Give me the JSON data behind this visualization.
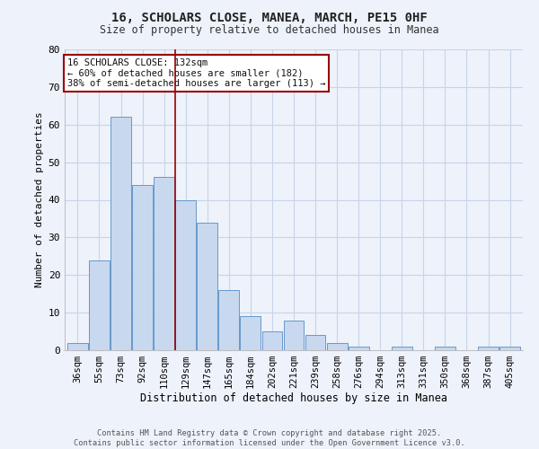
{
  "title_line1": "16, SCHOLARS CLOSE, MANEA, MARCH, PE15 0HF",
  "title_line2": "Size of property relative to detached houses in Manea",
  "xlabel": "Distribution of detached houses by size in Manea",
  "ylabel": "Number of detached properties",
  "bar_labels": [
    "36sqm",
    "55sqm",
    "73sqm",
    "92sqm",
    "110sqm",
    "129sqm",
    "147sqm",
    "165sqm",
    "184sqm",
    "202sqm",
    "221sqm",
    "239sqm",
    "258sqm",
    "276sqm",
    "294sqm",
    "313sqm",
    "331sqm",
    "350sqm",
    "368sqm",
    "387sqm",
    "405sqm"
  ],
  "bar_values": [
    2,
    24,
    62,
    44,
    46,
    40,
    34,
    16,
    9,
    5,
    8,
    4,
    2,
    1,
    0,
    1,
    0,
    1,
    0,
    1,
    1
  ],
  "bar_color": "#c8d8ee",
  "bar_edge_color": "#6699cc",
  "vline_x": 4.5,
  "vline_color": "#990000",
  "annotation_text": "16 SCHOLARS CLOSE: 132sqm\n← 60% of detached houses are smaller (182)\n38% of semi-detached houses are larger (113) →",
  "annotation_box_color": "white",
  "annotation_box_edge_color": "#990000",
  "ylim": [
    0,
    80
  ],
  "yticks": [
    0,
    10,
    20,
    30,
    40,
    50,
    60,
    70,
    80
  ],
  "grid_color": "#c8d4e8",
  "background_color": "#eef2fa",
  "footer_line1": "Contains HM Land Registry data © Crown copyright and database right 2025.",
  "footer_line2": "Contains public sector information licensed under the Open Government Licence v3.0."
}
